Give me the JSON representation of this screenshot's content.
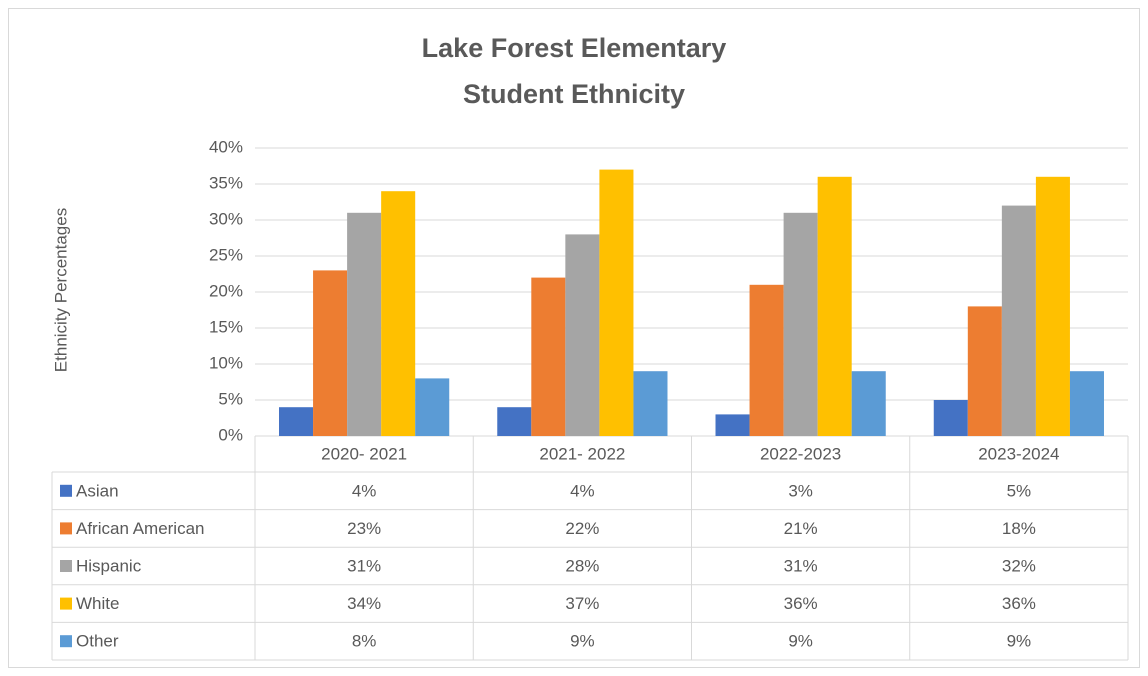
{
  "chart_data": {
    "type": "bar",
    "title": [
      "Lake Forest Elementary",
      "Student Ethnicity"
    ],
    "ylabel": "Ethnicity Percentages",
    "categories": [
      "2020- 2021",
      "2021- 2022",
      "2022-2023",
      "2023-2024"
    ],
    "series": [
      {
        "name": "Asian",
        "color": "#4472c4",
        "values": [
          4,
          4,
          3,
          5
        ],
        "value_labels": [
          "4%",
          "4%",
          "3%",
          "5%"
        ]
      },
      {
        "name": "African American",
        "color": "#ed7d31",
        "values": [
          23,
          22,
          21,
          18
        ],
        "value_labels": [
          "23%",
          "22%",
          "21%",
          "18%"
        ]
      },
      {
        "name": "Hispanic",
        "color": "#a5a5a5",
        "values": [
          31,
          28,
          31,
          32
        ],
        "value_labels": [
          "31%",
          "28%",
          "31%",
          "32%"
        ]
      },
      {
        "name": "White",
        "color": "#ffc000",
        "values": [
          34,
          37,
          36,
          36
        ],
        "value_labels": [
          "34%",
          "37%",
          "36%",
          "36%"
        ]
      },
      {
        "name": "Other",
        "color": "#5b9bd5",
        "values": [
          8,
          9,
          9,
          9
        ],
        "value_labels": [
          "8%",
          "9%",
          "9%",
          "9%"
        ]
      }
    ],
    "ylim": [
      0,
      40
    ],
    "yticks": [
      {
        "value": 0,
        "label": "0%"
      },
      {
        "value": 5,
        "label": "5%"
      },
      {
        "value": 10,
        "label": "10%"
      },
      {
        "value": 15,
        "label": "15%"
      },
      {
        "value": 20,
        "label": "20%"
      },
      {
        "value": 25,
        "label": "25%"
      },
      {
        "value": 30,
        "label": "30%"
      },
      {
        "value": 35,
        "label": "35%"
      },
      {
        "value": 40,
        "label": "40%"
      }
    ],
    "grid": true
  }
}
